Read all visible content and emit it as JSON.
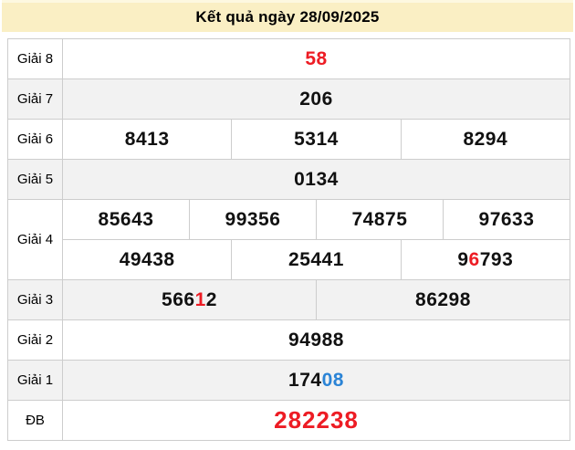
{
  "title": "Kết quả ngày 28/09/2025",
  "colors": {
    "red": "#ed1c24",
    "blue": "#2b84d6",
    "black": "#111111",
    "title_bg": "#faefc4",
    "alt_row_bg": "#f2f2f2",
    "border": "#cdcdcd"
  },
  "table": {
    "prizes": [
      {
        "label": "Giải 8",
        "big": false,
        "lines": [
          [
            [
              [
                "58",
                "red"
              ]
            ]
          ]
        ]
      },
      {
        "label": "Giải 7",
        "big": false,
        "lines": [
          [
            [
              [
                "206"
              ]
            ]
          ]
        ]
      },
      {
        "label": "Giải 6",
        "big": false,
        "lines": [
          [
            [
              [
                "8413"
              ]
            ],
            [
              [
                "5314"
              ]
            ],
            [
              [
                "8294"
              ]
            ]
          ]
        ]
      },
      {
        "label": "Giải 5",
        "big": false,
        "lines": [
          [
            [
              [
                "0134"
              ]
            ]
          ]
        ]
      },
      {
        "label": "Giải 4",
        "big": false,
        "lines": [
          [
            [
              [
                "85643"
              ]
            ],
            [
              [
                "99356"
              ]
            ],
            [
              [
                "74875"
              ]
            ],
            [
              [
                "97633"
              ]
            ]
          ],
          [
            [
              [
                "49438"
              ]
            ],
            [
              [
                "25441"
              ]
            ],
            [
              [
                "9"
              ],
              [
                "6",
                "red"
              ],
              [
                "793"
              ]
            ]
          ]
        ]
      },
      {
        "label": "Giải 3",
        "big": false,
        "lines": [
          [
            [
              [
                "566"
              ],
              [
                "1",
                "red"
              ],
              [
                "2"
              ]
            ],
            [
              [
                "86298"
              ]
            ]
          ]
        ]
      },
      {
        "label": "Giải 2",
        "big": false,
        "lines": [
          [
            [
              [
                "94988"
              ]
            ]
          ]
        ]
      },
      {
        "label": "Giải 1",
        "big": false,
        "lines": [
          [
            [
              [
                "174"
              ],
              [
                "08",
                "blue"
              ]
            ]
          ]
        ]
      },
      {
        "label": "ĐB",
        "big": true,
        "lines": [
          [
            [
              [
                "282238",
                "red"
              ]
            ]
          ]
        ]
      }
    ]
  }
}
